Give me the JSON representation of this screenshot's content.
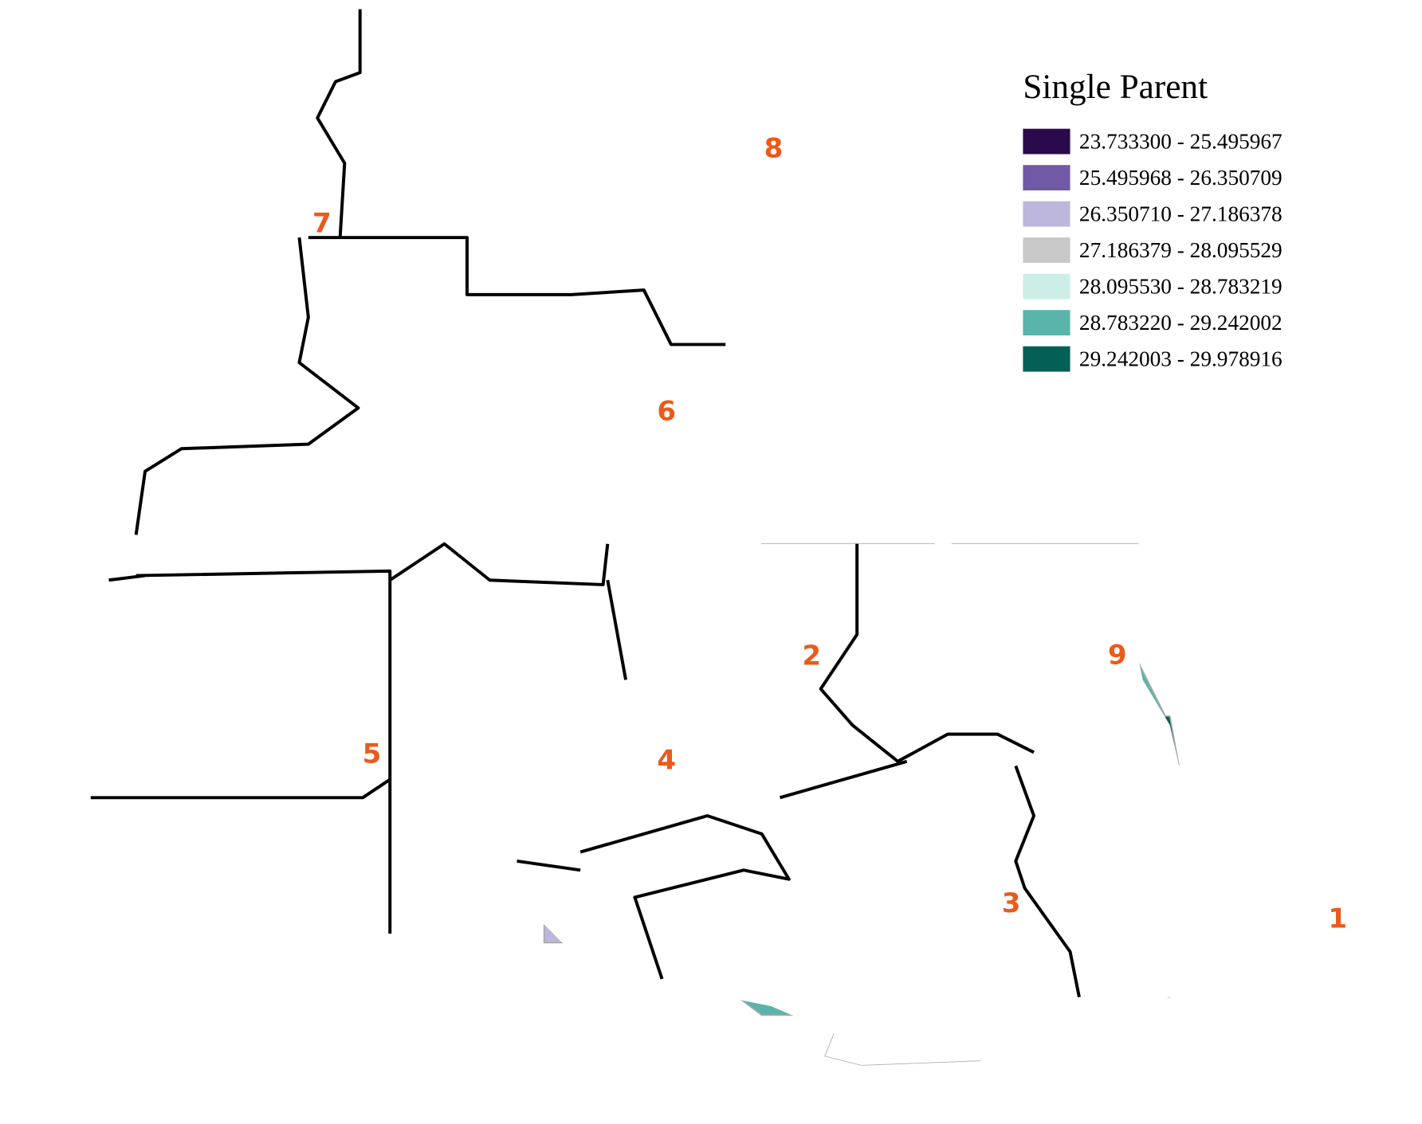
{
  "legend": {
    "title": "Single Parent",
    "items": [
      {
        "label": "23.733300 - 25.495967",
        "color": "#2a0a4d"
      },
      {
        "label": "25.495968 - 26.350709",
        "color": "#7259a6"
      },
      {
        "label": "26.350710 - 27.186378",
        "color": "#bdb7dc"
      },
      {
        "label": "27.186379 - 28.095529",
        "color": "#c8c8c8"
      },
      {
        "label": "28.095530 - 28.783219",
        "color": "#cdeee6"
      },
      {
        "label": "28.783220 - 29.242002",
        "color": "#5ab4aa"
      },
      {
        "label": "29.242003 - 29.978916",
        "color": "#045f56"
      }
    ]
  },
  "region_labels": [
    "1",
    "2",
    "3",
    "4",
    "5",
    "6",
    "7",
    "8",
    "9"
  ]
}
